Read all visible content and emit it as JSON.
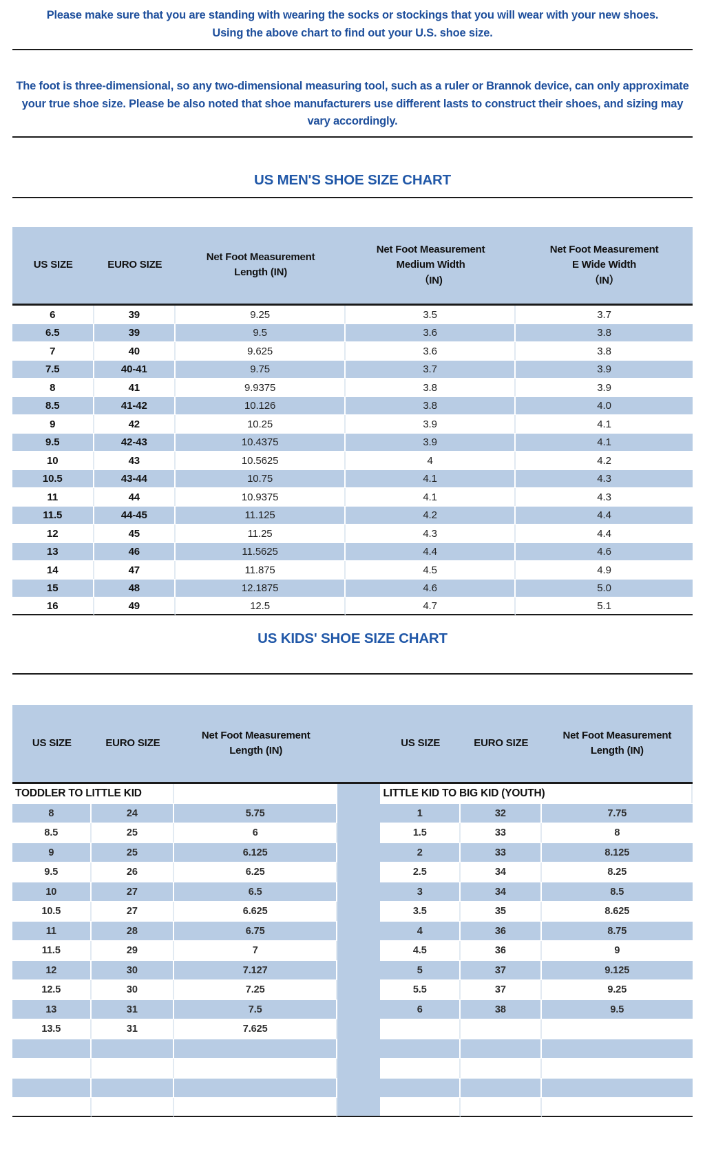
{
  "colors": {
    "table_blue": "#b8cce4",
    "note_blue": "#1e4f9c",
    "title_blue": "#2158a8",
    "line_dark": "#1a1a1a"
  },
  "notes": {
    "note1": "Please make sure that you are standing with wearing the socks or stockings that you will wear with your new shoes.\nUsing the above chart to find out your U.S. shoe size.",
    "note2": "The foot is three-dimensional, so any two-dimensional measuring tool, such as a ruler or Brannok device, can only approximate your true shoe size. Please be also noted that shoe manufacturers use different lasts to construct their shoes, and sizing may vary accordingly."
  },
  "mens_chart": {
    "title": "US MEN'S SHOE SIZE CHART",
    "columns": [
      "US SIZE",
      "EURO SIZE",
      "Net Foot Measurement\nLength (IN)",
      "Net Foot Measurement\nMedium Width\n（IN)",
      "Net Foot Measurement\nE Wide Width\n（IN）"
    ],
    "rows": [
      [
        "6",
        "39",
        "9.25",
        "3.5",
        "3.7"
      ],
      [
        "6.5",
        "39",
        "9.5",
        "3.6",
        "3.8"
      ],
      [
        "7",
        "40",
        "9.625",
        "3.6",
        "3.8"
      ],
      [
        "7.5",
        "40-41",
        "9.75",
        "3.7",
        "3.9"
      ],
      [
        "8",
        "41",
        "9.9375",
        "3.8",
        "3.9"
      ],
      [
        "8.5",
        "41-42",
        "10.126",
        "3.8",
        "4.0"
      ],
      [
        "9",
        "42",
        "10.25",
        "3.9",
        "4.1"
      ],
      [
        "9.5",
        "42-43",
        "10.4375",
        "3.9",
        "4.1"
      ],
      [
        "10",
        "43",
        "10.5625",
        "4",
        "4.2"
      ],
      [
        "10.5",
        "43-44",
        "10.75",
        "4.1",
        "4.3"
      ],
      [
        "11",
        "44",
        "10.9375",
        "4.1",
        "4.3"
      ],
      [
        "11.5",
        "44-45",
        "11.125",
        "4.2",
        "4.4"
      ],
      [
        "12",
        "45",
        "11.25",
        "4.3",
        "4.4"
      ],
      [
        "13",
        "46",
        "11.5625",
        "4.4",
        "4.6"
      ],
      [
        "14",
        "47",
        "11.875",
        "4.5",
        "4.9"
      ],
      [
        "15",
        "48",
        "12.1875",
        "4.6",
        "5.0"
      ],
      [
        "16",
        "49",
        "12.5",
        "4.7",
        "5.1"
      ]
    ]
  },
  "kids_chart": {
    "title": "US KIDS' SHOE SIZE CHART",
    "columns": [
      "US SIZE",
      "EURO SIZE",
      "Net Foot Measurement\nLength (IN)"
    ],
    "left": {
      "section": "TODDLER TO LITTLE KID",
      "rows": [
        [
          "8",
          "24",
          "5.75"
        ],
        [
          "8.5",
          "25",
          "6"
        ],
        [
          "9",
          "25",
          "6.125"
        ],
        [
          "9.5",
          "26",
          "6.25"
        ],
        [
          "10",
          "27",
          "6.5"
        ],
        [
          "10.5",
          "27",
          "6.625"
        ],
        [
          "11",
          "28",
          "6.75"
        ],
        [
          "11.5",
          "29",
          "7"
        ],
        [
          "12",
          "30",
          "7.127"
        ],
        [
          "12.5",
          "30",
          "7.25"
        ],
        [
          "13",
          "31",
          "7.5"
        ],
        [
          "13.5",
          "31",
          "7.625"
        ]
      ],
      "empty_rows": 4
    },
    "right": {
      "section": "LITTLE KID TO BIG KID (YOUTH)",
      "rows": [
        [
          "1",
          "32",
          "7.75"
        ],
        [
          "1.5",
          "33",
          "8"
        ],
        [
          "2",
          "33",
          "8.125"
        ],
        [
          "2.5",
          "34",
          "8.25"
        ],
        [
          "3",
          "34",
          "8.5"
        ],
        [
          "3.5",
          "35",
          "8.625"
        ],
        [
          "4",
          "36",
          "8.75"
        ],
        [
          "4.5",
          "36",
          "9"
        ],
        [
          "5",
          "37",
          "9.125"
        ],
        [
          "5.5",
          "37",
          "9.25"
        ],
        [
          "6",
          "38",
          "9.5"
        ]
      ],
      "empty_rows": 5
    }
  }
}
